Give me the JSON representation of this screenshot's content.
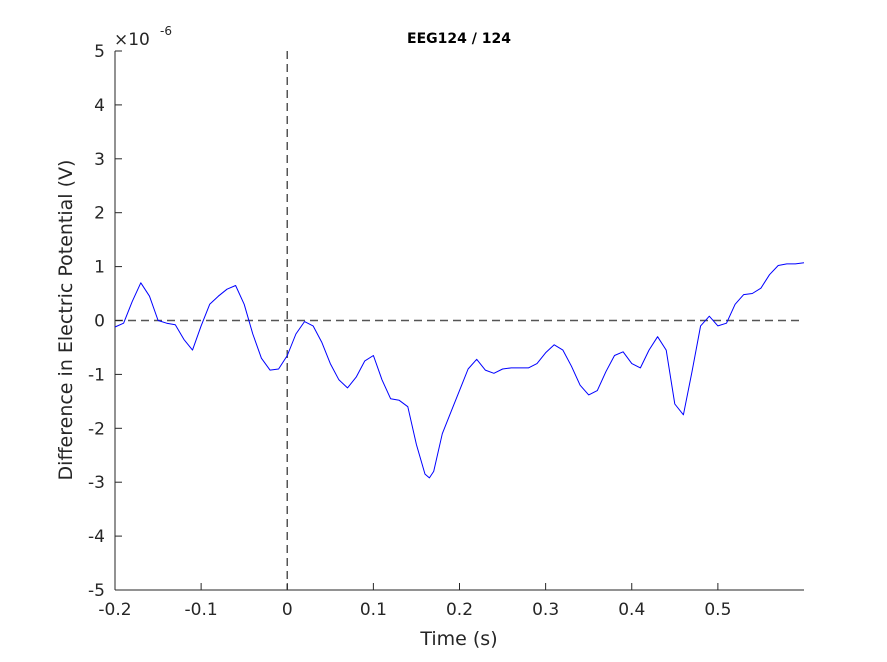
{
  "chart_data": {
    "type": "line",
    "title": "EEG124 / 124",
    "xlabel": "Time (s)",
    "ylabel": "Difference in Electric Potential (V)",
    "y_exponent_base": "×10",
    "y_exponent_power": "-6",
    "xlim": [
      -0.2,
      0.6
    ],
    "ylim": [
      -5,
      5
    ],
    "x_ticks": [
      -0.2,
      -0.1,
      0,
      0.1,
      0.2,
      0.3,
      0.4,
      0.5
    ],
    "x_tick_labels": [
      "-0.2",
      "-0.1",
      "0",
      "0.1",
      "0.2",
      "0.3",
      "0.4",
      "0.5"
    ],
    "y_ticks": [
      -5,
      -4,
      -3,
      -2,
      -1,
      0,
      1,
      2,
      3,
      4,
      5
    ],
    "y_tick_labels": [
      "-5",
      "-4",
      "-3",
      "-2",
      "-1",
      "0",
      "1",
      "2",
      "3",
      "4",
      "5"
    ],
    "grid": false,
    "reference_lines": {
      "x": 0,
      "y": 0,
      "style": "dashed"
    },
    "series": [
      {
        "color": "#0000ff",
        "x": [
          -0.2,
          -0.19,
          -0.18,
          -0.17,
          -0.16,
          -0.15,
          -0.14,
          -0.13,
          -0.12,
          -0.11,
          -0.1,
          -0.09,
          -0.08,
          -0.07,
          -0.06,
          -0.05,
          -0.04,
          -0.03,
          -0.02,
          -0.01,
          0.0,
          0.01,
          0.02,
          0.03,
          0.04,
          0.05,
          0.06,
          0.07,
          0.08,
          0.09,
          0.1,
          0.11,
          0.12,
          0.13,
          0.14,
          0.15,
          0.16,
          0.165,
          0.17,
          0.18,
          0.19,
          0.2,
          0.21,
          0.22,
          0.23,
          0.24,
          0.25,
          0.26,
          0.27,
          0.28,
          0.29,
          0.3,
          0.31,
          0.32,
          0.33,
          0.34,
          0.35,
          0.36,
          0.37,
          0.38,
          0.39,
          0.4,
          0.41,
          0.42,
          0.43,
          0.44,
          0.45,
          0.46,
          0.47,
          0.48,
          0.49,
          0.5,
          0.51,
          0.52,
          0.53,
          0.54,
          0.55,
          0.56,
          0.57,
          0.58,
          0.59,
          0.6
        ],
        "y": [
          -0.12,
          -0.05,
          0.35,
          0.7,
          0.45,
          0.0,
          -0.05,
          -0.08,
          -0.35,
          -0.55,
          -0.1,
          0.3,
          0.45,
          0.58,
          0.65,
          0.3,
          -0.25,
          -0.7,
          -0.92,
          -0.9,
          -0.65,
          -0.25,
          -0.02,
          -0.1,
          -0.4,
          -0.8,
          -1.1,
          -1.25,
          -1.05,
          -0.75,
          -0.65,
          -1.1,
          -1.45,
          -1.48,
          -1.6,
          -2.3,
          -2.85,
          -2.92,
          -2.8,
          -2.1,
          -1.7,
          -1.3,
          -0.9,
          -0.72,
          -0.92,
          -0.98,
          -0.9,
          -0.88,
          -0.88,
          -0.88,
          -0.8,
          -0.6,
          -0.45,
          -0.55,
          -0.85,
          -1.2,
          -1.38,
          -1.3,
          -0.95,
          -0.65,
          -0.58,
          -0.8,
          -0.88,
          -0.55,
          -0.3,
          -0.55,
          -1.55,
          -1.75,
          -0.95,
          -0.1,
          0.08,
          -0.1,
          -0.05,
          0.3,
          0.48,
          0.5,
          0.6,
          0.85,
          1.02,
          1.05,
          1.05,
          1.07
        ]
      }
    ]
  }
}
